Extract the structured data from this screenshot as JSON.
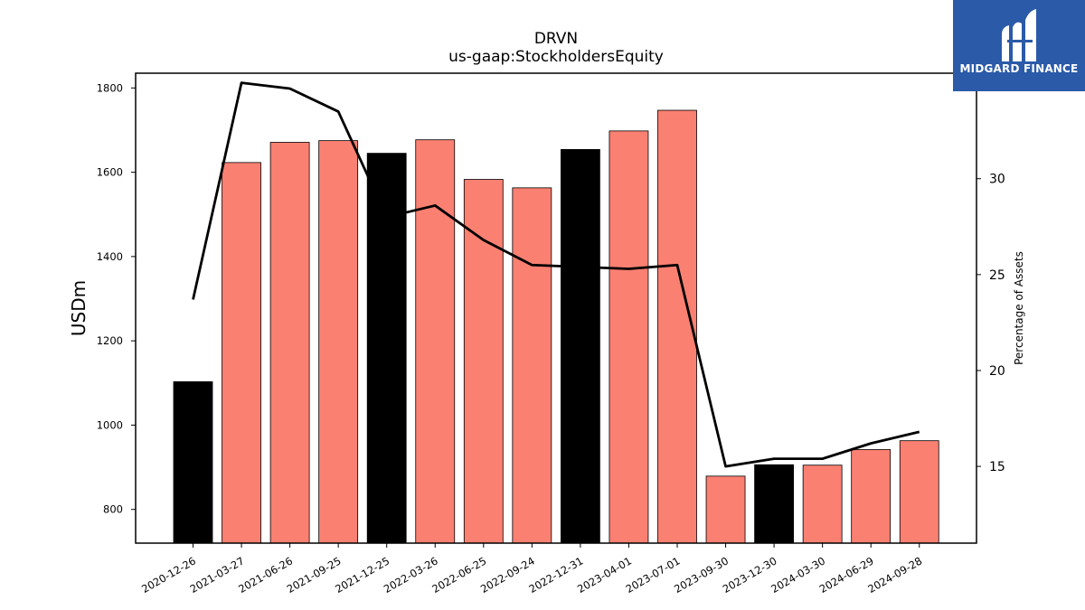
{
  "chart_data": {
    "type": "bar",
    "title": "DRVN",
    "subtitle": "us-gaap:StockholdersEquity",
    "ylabel": "USDm",
    "y2label": "Percentage of Assets",
    "ylim": [
      720,
      1835
    ],
    "y2lim": [
      11,
      35.5
    ],
    "yticks": [
      800,
      1000,
      1200,
      1400,
      1600,
      1800
    ],
    "y2ticks": [
      15,
      20,
      25,
      30,
      35
    ],
    "categories": [
      "2020-12-26",
      "2021-03-27",
      "2021-06-26",
      "2021-09-25",
      "2021-12-25",
      "2022-03-26",
      "2022-06-25",
      "2022-09-24",
      "2022-12-31",
      "2023-04-01",
      "2023-07-01",
      "2023-09-30",
      "2023-12-30",
      "2024-03-30",
      "2024-06-29",
      "2024-09-28"
    ],
    "series": [
      {
        "values": [
          1103,
          1623,
          1671,
          1675,
          1645,
          1677,
          1583,
          1563,
          1654,
          1698,
          1747,
          879,
          906,
          905,
          942,
          963
        ],
        "colors": [
          "#000000",
          "#fa8072",
          "#fa8072",
          "#fa8072",
          "#000000",
          "#fa8072",
          "#fa8072",
          "#fa8072",
          "#000000",
          "#fa8072",
          "#fa8072",
          "#fa8072",
          "#000000",
          "#fa8072",
          "#fa8072",
          "#fa8072"
        ]
      },
      {
        "type": "line",
        "axis": "right",
        "color": "#000000",
        "values": [
          23.7,
          35.0,
          34.7,
          33.5,
          28.0,
          28.6,
          26.8,
          25.5,
          25.4,
          25.3,
          25.5,
          15.0,
          15.4,
          15.4,
          16.2,
          16.8
        ]
      }
    ],
    "grid": false
  },
  "logo": {
    "text": "MIDGARD FINANCE",
    "color": "#2b5aa8"
  }
}
